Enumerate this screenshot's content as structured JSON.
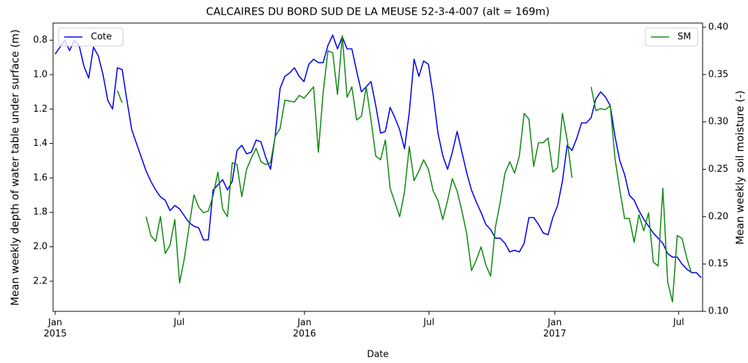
{
  "chart_data": {
    "type": "line",
    "title": "CALCAIRES DU BORD SUD DE LA MEUSE 52-3-4-007 (alt = 169m)",
    "xlabel": "Date",
    "ylabel": "Mean weekly depth of water table under surface (m)",
    "y2label": "Mean weekly soil moisture (-)",
    "x": [
      0,
      1,
      2,
      3,
      4,
      5,
      6,
      7,
      8,
      9,
      10,
      11,
      12,
      13,
      14,
      15,
      16,
      17,
      18,
      19,
      20,
      21,
      22,
      23,
      24,
      25,
      26,
      27,
      28,
      29,
      30,
      31,
      32,
      33,
      34,
      35,
      36,
      37,
      38,
      39,
      40,
      41,
      42,
      43,
      44,
      45,
      46,
      47,
      48,
      49,
      50,
      51,
      52,
      53,
      54,
      55,
      56,
      57,
      58,
      59,
      60,
      61,
      62,
      63,
      64,
      65,
      66,
      67,
      68,
      69,
      70,
      71,
      72,
      73,
      74,
      75,
      76,
      77,
      78,
      79,
      80,
      81,
      82,
      83,
      84,
      85,
      86,
      87,
      88,
      89,
      90,
      91,
      92,
      93,
      94,
      95,
      96,
      97,
      98,
      99,
      100,
      101,
      102,
      103,
      104,
      105,
      106,
      107,
      108,
      109,
      110,
      111,
      112,
      113,
      114,
      115,
      116,
      117,
      118,
      119,
      120,
      121,
      122,
      123,
      124,
      125,
      126,
      127,
      128,
      129,
      130,
      131,
      132,
      133,
      134,
      135
    ],
    "xlim": [
      -0.44,
      135.3
    ],
    "xticks": [
      {
        "value": 0,
        "label": "Jan\n2015"
      },
      {
        "value": 25.9,
        "label": "Jul"
      },
      {
        "value": 52.1,
        "label": "Jan\n2016"
      },
      {
        "value": 78.1,
        "label": "Jul"
      },
      {
        "value": 104.4,
        "label": "Jan\n2017"
      },
      {
        "value": 130.3,
        "label": "Jul"
      }
    ],
    "ylim": [
      0.7,
      2.375
    ],
    "y_inverted": true,
    "yticks": [
      0.8,
      {
        "value": 1,
        "label": "1.0"
      },
      1.2,
      1.4,
      1.6,
      1.8,
      {
        "value": 2,
        "label": "2.0"
      },
      2.2
    ],
    "y2lim": [
      0.1,
      0.4044
    ],
    "y2ticks": [
      {
        "value": 0.1,
        "label": "0.10"
      },
      0.15,
      {
        "value": 0.2,
        "label": "0.20"
      },
      0.25,
      {
        "value": 0.3,
        "label": "0.30"
      },
      0.35,
      {
        "value": 0.4,
        "label": "0.40"
      }
    ],
    "series": [
      {
        "name": "Cote",
        "color": "#0000ee",
        "axis": "y",
        "legend": "upper left",
        "values": [
          0.88,
          0.84,
          0.8,
          0.86,
          0.8,
          0.83,
          0.95,
          1.02,
          0.84,
          0.89,
          1.0,
          1.15,
          1.2,
          0.96,
          0.97,
          1.15,
          1.32,
          1.4,
          1.48,
          1.56,
          1.62,
          1.67,
          1.71,
          1.73,
          1.79,
          1.76,
          1.78,
          1.82,
          1.86,
          1.88,
          1.89,
          1.96,
          1.96,
          1.67,
          1.64,
          1.61,
          1.67,
          1.62,
          1.44,
          1.41,
          1.46,
          1.45,
          1.38,
          1.39,
          1.48,
          1.55,
          1.35,
          1.08,
          1.01,
          0.99,
          0.96,
          1.01,
          1.04,
          0.94,
          0.91,
          0.93,
          0.93,
          0.83,
          0.77,
          0.85,
          0.78,
          0.85,
          0.85,
          0.98,
          1.1,
          1.07,
          1.04,
          1.18,
          1.34,
          1.33,
          1.19,
          1.25,
          1.32,
          1.43,
          1.22,
          0.91,
          1.01,
          0.92,
          0.94,
          1.12,
          1.34,
          1.47,
          1.55,
          1.45,
          1.33,
          1.45,
          1.57,
          1.67,
          1.74,
          1.8,
          1.87,
          1.9,
          1.95,
          1.95,
          1.98,
          2.03,
          2.02,
          2.03,
          1.98,
          1.83,
          1.83,
          1.87,
          1.92,
          1.93,
          1.83,
          1.76,
          1.62,
          1.41,
          1.44,
          1.37,
          1.28,
          1.28,
          1.25,
          1.14,
          1.1,
          1.13,
          1.18,
          1.36,
          1.5,
          1.58,
          1.7,
          1.73,
          1.79,
          1.84,
          1.88,
          1.92,
          1.95,
          1.98,
          2.04,
          2.06,
          2.06,
          2.1,
          2.13,
          2.15,
          2.15,
          2.18
        ]
      },
      {
        "name": "SM",
        "color": "#138a13",
        "axis": "y2",
        "legend": "upper right",
        "values": [
          null,
          null,
          null,
          null,
          null,
          null,
          null,
          null,
          null,
          null,
          null,
          null,
          null,
          0.333,
          0.32,
          null,
          null,
          null,
          null,
          0.2,
          0.18,
          0.174,
          0.2,
          0.161,
          0.17,
          0.197,
          0.13,
          0.156,
          0.19,
          0.223,
          0.21,
          0.204,
          0.206,
          0.222,
          0.247,
          0.208,
          0.2,
          0.257,
          0.255,
          0.221,
          0.25,
          0.262,
          0.272,
          0.258,
          0.255,
          0.257,
          0.285,
          0.293,
          0.323,
          0.322,
          0.321,
          0.328,
          0.325,
          0.331,
          0.337,
          0.268,
          0.331,
          0.375,
          0.373,
          0.329,
          0.391,
          0.326,
          0.337,
          0.302,
          0.306,
          0.337,
          0.302,
          0.264,
          0.26,
          0.281,
          0.23,
          0.215,
          0.2,
          0.226,
          0.274,
          0.238,
          0.248,
          0.26,
          0.25,
          0.227,
          0.217,
          0.197,
          0.217,
          0.24,
          0.227,
          0.206,
          0.182,
          0.143,
          0.154,
          0.168,
          0.149,
          0.137,
          0.189,
          0.215,
          0.246,
          0.258,
          0.246,
          0.264,
          0.309,
          0.303,
          0.253,
          0.278,
          0.278,
          0.283,
          0.247,
          0.252,
          0.309,
          0.281,
          0.241,
          null,
          null,
          null,
          0.337,
          0.312,
          0.314,
          0.313,
          0.317,
          0.261,
          0.228,
          0.198,
          0.198,
          0.173,
          0.202,
          0.185,
          0.204,
          0.152,
          0.148,
          0.23,
          0.131,
          0.11,
          0.18,
          0.177,
          0.156,
          0.14,
          null,
          null
        ]
      }
    ]
  }
}
